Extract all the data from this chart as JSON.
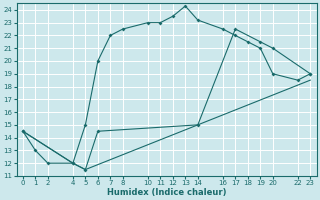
{
  "xlabel": "Humidex (Indice chaleur)",
  "bg_color": "#cde8ec",
  "grid_color": "#ffffff",
  "line_color": "#1a6b6b",
  "xlim": [
    -0.5,
    23.5
  ],
  "ylim": [
    11,
    24.5
  ],
  "xticks": [
    0,
    1,
    2,
    4,
    5,
    6,
    7,
    8,
    10,
    11,
    12,
    13,
    14,
    16,
    17,
    18,
    19,
    20,
    22,
    23
  ],
  "yticks": [
    11,
    12,
    13,
    14,
    15,
    16,
    17,
    18,
    19,
    20,
    21,
    22,
    23,
    24
  ],
  "series1_x": [
    0,
    1,
    2,
    4,
    5,
    6,
    7,
    8,
    10,
    11,
    12,
    13,
    14,
    16,
    17,
    18,
    19,
    20,
    22,
    23
  ],
  "series1_y": [
    14.5,
    13.0,
    12.0,
    12.0,
    15.0,
    20.0,
    22.0,
    22.5,
    23.0,
    23.0,
    23.5,
    24.3,
    23.2,
    22.5,
    22.0,
    21.5,
    21.0,
    19.0,
    18.5,
    19.0
  ],
  "series2_x": [
    0,
    4,
    5,
    6,
    14,
    17,
    19,
    20,
    23
  ],
  "series2_y": [
    14.5,
    12.0,
    11.5,
    14.5,
    15.0,
    22.5,
    21.5,
    21.0,
    19.0
  ],
  "series3_x": [
    0,
    4,
    5,
    23
  ],
  "series3_y": [
    14.5,
    12.0,
    11.5,
    18.5
  ]
}
